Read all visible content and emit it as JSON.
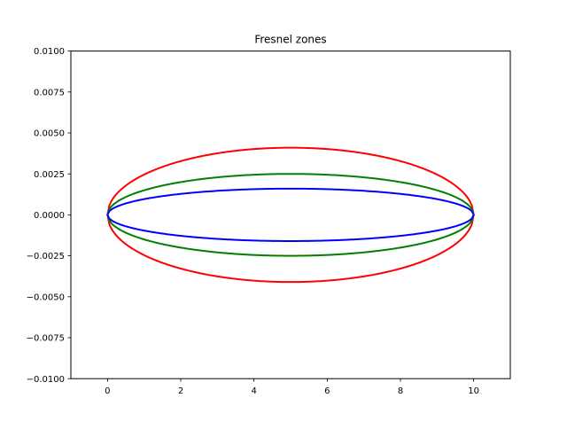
{
  "chart_data": {
    "type": "line",
    "title": "Fresnel zones",
    "xlabel": "",
    "ylabel": "",
    "xlim": [
      -1,
      11
    ],
    "ylim": [
      -0.01,
      0.01
    ],
    "xticks": [
      0,
      2,
      4,
      6,
      8,
      10
    ],
    "xtick_labels": [
      "0",
      "2",
      "4",
      "6",
      "8",
      "10"
    ],
    "yticks": [
      -0.01,
      -0.0075,
      -0.005,
      -0.0025,
      0.0,
      0.0025,
      0.005,
      0.0075,
      0.01
    ],
    "ytick_labels": [
      "−0.0100",
      "−0.0075",
      "−0.0050",
      "−0.0025",
      "0.0000",
      "0.0025",
      "0.0050",
      "0.0075",
      "0.0100"
    ],
    "grid": false,
    "series": [
      {
        "color": "#ff0000",
        "x_start": 0,
        "x_end": 10,
        "center_x": 5,
        "max_half_width": 0.0041
      },
      {
        "color": "#008000",
        "x_start": 0,
        "x_end": 10,
        "center_x": 5,
        "max_half_width": 0.0025
      },
      {
        "color": "#0000ff",
        "x_start": 0,
        "x_end": 10,
        "center_x": 5,
        "max_half_width": 0.0016
      }
    ]
  }
}
